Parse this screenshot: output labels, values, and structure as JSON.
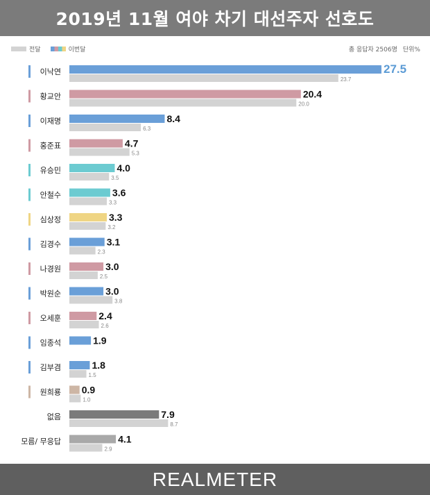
{
  "title": "2019년 11월 여야 차기 대선주자 선호도",
  "legend": {
    "prev_label": "전달",
    "curr_label": "이번달"
  },
  "meta": {
    "respondents": "총 응답자 2506명",
    "unit": "단위%"
  },
  "footer": "REALMETER",
  "colors": {
    "title_bg": "#7b7b7b",
    "footer_bg": "#5f5f5f",
    "prev_bar": "#d3d3d3",
    "highlight_value": "#5b9bd5"
  },
  "chart_data": {
    "type": "bar",
    "orientation": "horizontal",
    "categories": [
      "이낙연",
      "황교안",
      "이재명",
      "홍준표",
      "유승민",
      "안철수",
      "심상정",
      "김경수",
      "나경원",
      "박원순",
      "오세훈",
      "임종석",
      "김부겸",
      "원희룡",
      "없음",
      "모름/ 무응답"
    ],
    "series": [
      {
        "name": "이번달",
        "values": [
          27.5,
          20.4,
          8.4,
          4.7,
          4.0,
          3.6,
          3.3,
          3.1,
          3.0,
          3.0,
          2.4,
          1.9,
          1.8,
          0.9,
          7.9,
          4.1
        ]
      },
      {
        "name": "전달",
        "values": [
          23.7,
          20.0,
          6.3,
          5.3,
          3.5,
          3.3,
          3.2,
          2.3,
          2.5,
          3.8,
          2.6,
          null,
          1.5,
          1.0,
          8.7,
          2.9
        ]
      }
    ],
    "value_labels_current": [
      "27.5",
      "20.4",
      "8.4",
      "4.7",
      "4.0",
      "3.6",
      "3.3",
      "3.1",
      "3.0",
      "3.0",
      "2.4",
      "1.9",
      "1.8",
      "0.9",
      "7.9",
      "4.1"
    ],
    "value_labels_previous": [
      "23.7",
      "20.0",
      "6.3",
      "5.3",
      "3.5",
      "3.3",
      "3.2",
      "2.3",
      "2.5",
      "3.8",
      "2.6",
      "",
      "1.5",
      "1.0",
      "8.7",
      "2.9"
    ],
    "category_colors": [
      "#6a9fd8",
      "#cf9aa3",
      "#6a9fd8",
      "#cf9aa3",
      "#6ccbd1",
      "#6ccbd1",
      "#efd584",
      "#6a9fd8",
      "#cf9aa3",
      "#6a9fd8",
      "#cf9aa3",
      "#6a9fd8",
      "#6a9fd8",
      "#cdb6a5",
      "#7a7a7a",
      "#a9a9a9"
    ],
    "xlim": [
      0,
      27.5
    ],
    "grid": false
  }
}
